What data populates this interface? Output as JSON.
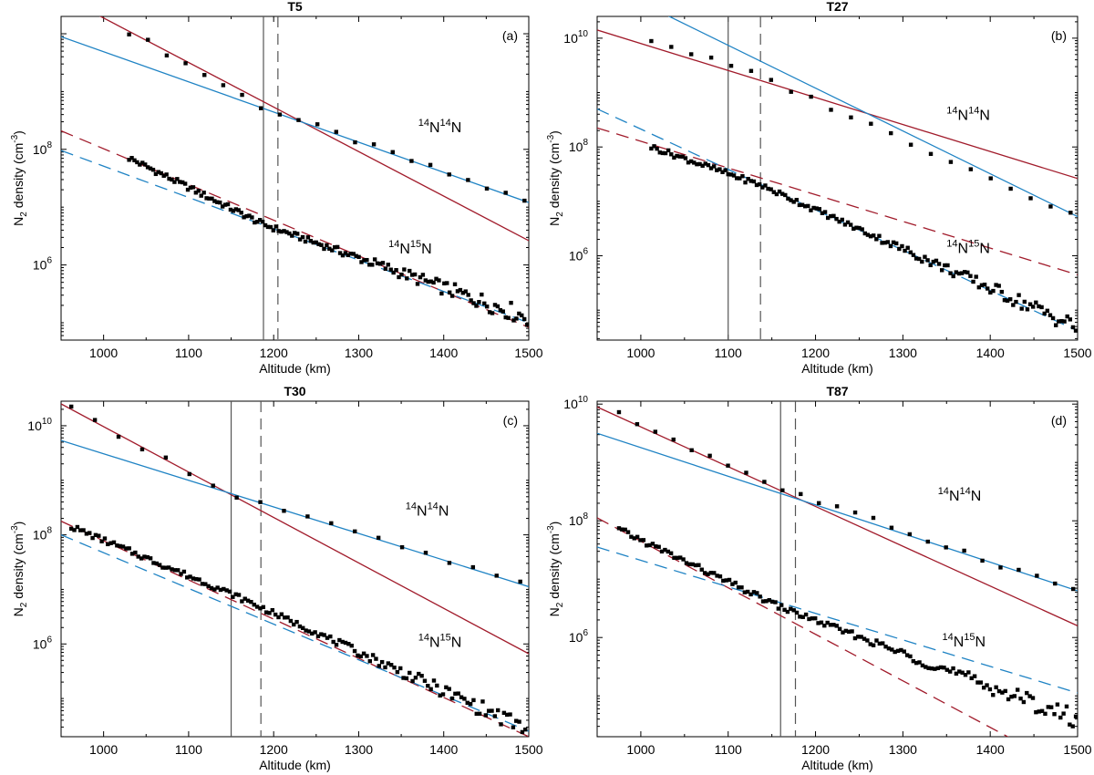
{
  "colors": {
    "red": "#a11b2b",
    "blue": "#1f83c4",
    "marker": "#000000",
    "axis": "#000000",
    "vline": "#555555"
  },
  "chart_data": [
    {
      "type": "scatter",
      "title": "T5",
      "panel_label": "(a)",
      "xlabel": "Altitude (km)",
      "ylabel": {
        "prefix": "N",
        "sub": "2",
        "mid": " density (cm",
        "sup": "-3",
        "suffix": ")"
      },
      "xlim": [
        950,
        1500
      ],
      "log10_ylim": [
        4.7,
        10.3
      ],
      "xticks": [
        1000,
        1100,
        1200,
        1300,
        1400,
        1500
      ],
      "yticks": [
        {
          "base": "10",
          "exp": "6",
          "log": 6
        },
        {
          "base": "10",
          "exp": "8",
          "log": 8
        }
      ],
      "vlines": {
        "solid": 1188,
        "dashed": 1205
      },
      "series_labels": {
        "n2": {
          "sup1": "14",
          "a": "N",
          "sup2": "14",
          "b": "N",
          "x": 1370,
          "log": 8.3
        },
        "iso": {
          "sup1": "14",
          "a": "N",
          "sup2": "15",
          "b": "N",
          "x": 1335,
          "log": 6.2
        }
      },
      "fits": [
        {
          "series": "14N14N below",
          "color": "red",
          "dash": false,
          "p1": [
            1025,
            10.08
          ],
          "p2": [
            1500,
            6.42
          ]
        },
        {
          "series": "14N14N above",
          "color": "blue",
          "dash": false,
          "p1": [
            950,
            9.95
          ],
          "p2": [
            1500,
            7.08
          ]
        },
        {
          "series": "14N15N below",
          "color": "red",
          "dash": true,
          "p1": [
            950,
            8.32
          ],
          "p2": [
            1500,
            4.92
          ]
        },
        {
          "series": "14N15N above",
          "color": "blue",
          "dash": true,
          "p1": [
            950,
            7.98
          ],
          "p2": [
            1500,
            5.0
          ]
        }
      ],
      "points": {
        "n2": {
          "x_start": 1030,
          "x_end": 1495,
          "count": 22,
          "p1": [
            1025,
            10.08
          ],
          "p2": [
            1188,
            8.72
          ],
          "p3": [
            1500,
            7.08
          ]
        },
        "iso": {
          "x_start": 1030,
          "x_end": 1498,
          "count": 150,
          "p1": [
            1030,
            7.85
          ],
          "p2": [
            1188,
            6.7
          ],
          "p3": [
            1498,
            5.1
          ]
        }
      }
    },
    {
      "type": "scatter",
      "title": "T27",
      "panel_label": "(b)",
      "xlabel": "Altitude (km)",
      "ylabel": {
        "prefix": "N",
        "sub": "2",
        "mid": " density (cm",
        "sup": "-3",
        "suffix": ")"
      },
      "xlim": [
        950,
        1500
      ],
      "log10_ylim": [
        4.45,
        10.4
      ],
      "xticks": [
        1000,
        1100,
        1200,
        1300,
        1400,
        1500
      ],
      "yticks": [
        {
          "base": "10",
          "exp": "6",
          "log": 6
        },
        {
          "base": "10",
          "exp": "8",
          "log": 8
        },
        {
          "base": "10",
          "exp": "10",
          "log": 10
        }
      ],
      "vlines": {
        "solid": 1100,
        "dashed": 1137
      },
      "series_labels": {
        "n2": {
          "sup1": "14",
          "a": "N",
          "sup2": "14",
          "b": "N",
          "x": 1350,
          "log": 8.5
        },
        "iso": {
          "sup1": "14",
          "a": "N",
          "sup2": "15",
          "b": "N",
          "x": 1350,
          "log": 6.05
        }
      },
      "fits": [
        {
          "series": "14N14N below",
          "color": "red",
          "dash": false,
          "p1": [
            950,
            10.15
          ],
          "p2": [
            1500,
            7.42
          ]
        },
        {
          "series": "14N14N above",
          "color": "blue",
          "dash": false,
          "p1": [
            950,
            11.05
          ],
          "p2": [
            1500,
            6.72
          ]
        },
        {
          "series": "14N15N below",
          "color": "red",
          "dash": true,
          "p1": [
            950,
            8.35
          ],
          "p2": [
            1500,
            5.65
          ]
        },
        {
          "series": "14N15N above",
          "color": "blue",
          "dash": true,
          "p1": [
            950,
            8.7
          ],
          "p2": [
            1500,
            4.62
          ]
        }
      ],
      "points": {
        "n2": {
          "x_start": 1012,
          "x_end": 1492,
          "count": 22,
          "p1": [
            1012,
            9.97
          ],
          "p2": [
            1137,
            9.3
          ],
          "p3": [
            1492,
            6.78
          ]
        },
        "iso": {
          "x_start": 1012,
          "x_end": 1498,
          "count": 150,
          "p1": [
            1012,
            8.0
          ],
          "p2": [
            1137,
            7.3
          ],
          "p3": [
            1498,
            4.7
          ]
        }
      }
    },
    {
      "type": "scatter",
      "title": "T30",
      "panel_label": "(c)",
      "xlabel": "Altitude (km)",
      "ylabel": {
        "prefix": "N",
        "sub": "2",
        "mid": " density (cm",
        "sup": "-3",
        "suffix": ")"
      },
      "xlim": [
        950,
        1500
      ],
      "log10_ylim": [
        4.3,
        10.45
      ],
      "xticks": [
        1000,
        1100,
        1200,
        1300,
        1400,
        1500
      ],
      "yticks": [
        {
          "base": "10",
          "exp": "6",
          "log": 6
        },
        {
          "base": "10",
          "exp": "8",
          "log": 8
        },
        {
          "base": "10",
          "exp": "10",
          "log": 10
        }
      ],
      "vlines": {
        "solid": 1150,
        "dashed": 1185
      },
      "series_labels": {
        "n2": {
          "sup1": "14",
          "a": "N",
          "sup2": "14",
          "b": "N",
          "x": 1355,
          "log": 8.35
        },
        "iso": {
          "sup1": "14",
          "a": "N",
          "sup2": "15",
          "b": "N",
          "x": 1370,
          "log": 5.95
        }
      },
      "fits": [
        {
          "series": "14N14N below",
          "color": "red",
          "dash": false,
          "p1": [
            950,
            10.4
          ],
          "p2": [
            1500,
            5.82
          ]
        },
        {
          "series": "14N14N above",
          "color": "blue",
          "dash": false,
          "p1": [
            950,
            9.73
          ],
          "p2": [
            1500,
            7.05
          ]
        },
        {
          "series": "14N15N below",
          "color": "red",
          "dash": true,
          "p1": [
            950,
            8.25
          ],
          "p2": [
            1500,
            4.3
          ]
        },
        {
          "series": "14N15N above",
          "color": "blue",
          "dash": true,
          "p1": [
            950,
            8.0
          ],
          "p2": [
            1500,
            4.4
          ]
        }
      ],
      "points": {
        "n2": {
          "x_start": 962,
          "x_end": 1490,
          "count": 20,
          "p1": [
            960,
            10.32
          ],
          "p2": [
            1150,
            8.75
          ],
          "p3": [
            1500,
            7.05
          ]
        },
        "iso": {
          "x_start": 962,
          "x_end": 1496,
          "count": 150,
          "p1": [
            962,
            8.15
          ],
          "p2": [
            1150,
            6.92
          ],
          "p3": [
            1496,
            4.45
          ]
        }
      }
    },
    {
      "type": "scatter",
      "title": "T87",
      "panel_label": "(d)",
      "xlabel": "Altitude (km)",
      "ylabel": {
        "prefix": "N",
        "sub": "2",
        "mid": " density (cm",
        "sup": "-3",
        "suffix": ")"
      },
      "xlim": [
        950,
        1500
      ],
      "log10_ylim": [
        4.3,
        10.05
      ],
      "xticks": [
        1000,
        1100,
        1200,
        1300,
        1400,
        1500
      ],
      "yticks": [
        {
          "base": "10",
          "exp": "6",
          "log": 6
        },
        {
          "base": "10",
          "exp": "8",
          "log": 8
        },
        {
          "base": "10",
          "exp": "10",
          "log": 10
        }
      ],
      "vlines": {
        "solid": 1160,
        "dashed": 1177
      },
      "series_labels": {
        "n2": {
          "sup1": "14",
          "a": "N",
          "sup2": "14",
          "b": "N",
          "x": 1340,
          "log": 8.35
        },
        "iso": {
          "sup1": "14",
          "a": "N",
          "sup2": "15",
          "b": "N",
          "x": 1345,
          "log": 5.85
        }
      },
      "fits": [
        {
          "series": "14N14N below",
          "color": "red",
          "dash": false,
          "p1": [
            950,
            9.95
          ],
          "p2": [
            1500,
            6.2
          ]
        },
        {
          "series": "14N14N above",
          "color": "blue",
          "dash": false,
          "p1": [
            950,
            9.5
          ],
          "p2": [
            1500,
            6.8
          ]
        },
        {
          "series": "14N15N below",
          "color": "red",
          "dash": true,
          "p1": [
            950,
            8.05
          ],
          "p2": [
            1420,
            4.3
          ]
        },
        {
          "series": "14N15N above",
          "color": "blue",
          "dash": true,
          "p1": [
            950,
            7.55
          ],
          "p2": [
            1500,
            5.05
          ]
        }
      ],
      "points": {
        "n2": {
          "x_start": 975,
          "x_end": 1495,
          "count": 26,
          "p1": [
            975,
            9.82
          ],
          "p2": [
            1160,
            8.55
          ],
          "p3": [
            1495,
            6.82
          ]
        },
        "iso": {
          "x_start": 975,
          "x_end": 1498,
          "count": 150,
          "p1": [
            975,
            7.85
          ],
          "p2": [
            1160,
            6.52
          ],
          "p3": [
            1498,
            4.6
          ]
        }
      }
    }
  ]
}
